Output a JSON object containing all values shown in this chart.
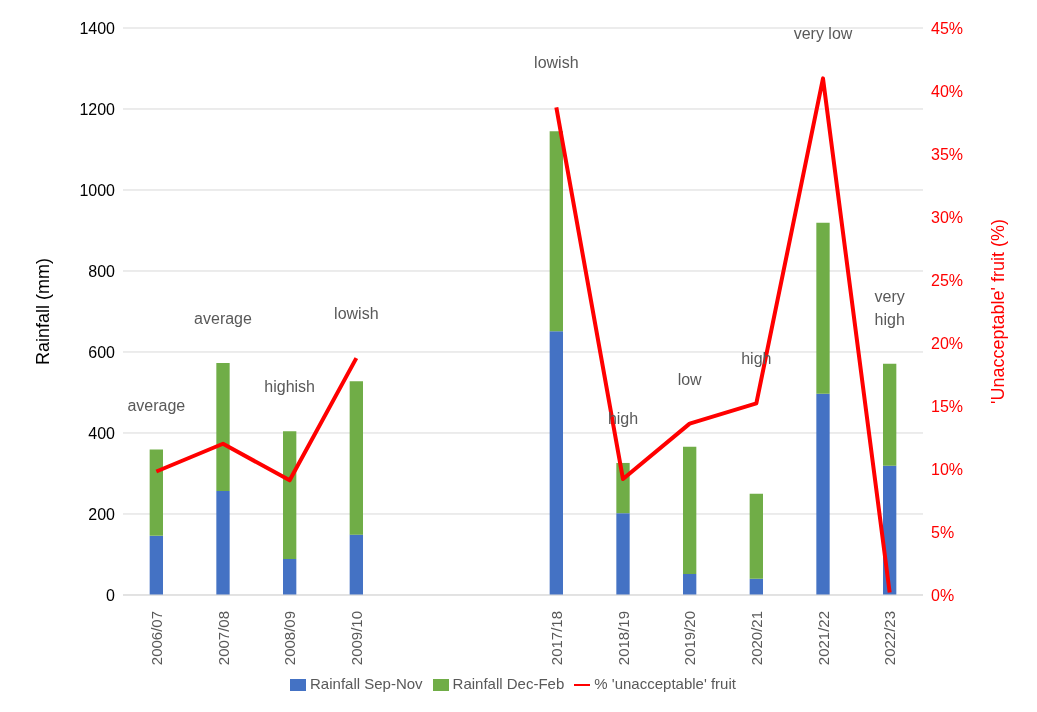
{
  "chart_data": {
    "type": "bar",
    "stacked": true,
    "ylabel": "Rainfall (mm)",
    "y2label": "'Unacceptable' fruit (%)",
    "categories": [
      "2006/07",
      "2007/08",
      "2008/09",
      "2009/10",
      null,
      null,
      "2017/18",
      "2018/19",
      "2019/20",
      "2020/21",
      "2021/22",
      "2022/23"
    ],
    "series": [
      {
        "name": "Rainfall Sep-Nov",
        "color": "#4472c4",
        "values": [
          146,
          257,
          89,
          149,
          null,
          null,
          651,
          202,
          52,
          40,
          497,
          319
        ]
      },
      {
        "name": "Rainfall Dec-Feb",
        "color": "#70ad47",
        "values": [
          213,
          316,
          315,
          379,
          null,
          null,
          494,
          124,
          314,
          210,
          422,
          252
        ]
      },
      {
        "name": "% 'unacceptable' fruit",
        "type": "line",
        "axis": "y2",
        "color": "#ff0000",
        "marker": "none",
        "line_style": "solid",
        "values": [
          9.8,
          12.0,
          9.1,
          18.8,
          null,
          null,
          38.7,
          9.2,
          13.6,
          15.2,
          41.0,
          0.2
        ]
      }
    ],
    "ylim": [
      0,
      1400
    ],
    "yticks": [
      0,
      200,
      400,
      600,
      800,
      1000,
      1200,
      1400
    ],
    "y2lim": [
      0,
      45
    ],
    "y2ticks": [
      {
        "value": 0,
        "label": "0%"
      },
      {
        "value": 5,
        "label": "5%"
      },
      {
        "value": 10,
        "label": "10%"
      },
      {
        "value": 15,
        "label": "15%"
      },
      {
        "value": 20,
        "label": "20%"
      },
      {
        "value": 25,
        "label": "25%"
      },
      {
        "value": 30,
        "label": "30%"
      },
      {
        "value": 35,
        "label": "35%"
      },
      {
        "value": 40,
        "label": "40%"
      },
      {
        "value": 45,
        "label": "45%"
      }
    ],
    "grid": "y",
    "legend": "bottom",
    "annotations": [
      "average",
      "average",
      "highish",
      "lowish",
      "lowish",
      "high",
      "low",
      "high",
      "very low",
      "very\nhigh"
    ]
  }
}
